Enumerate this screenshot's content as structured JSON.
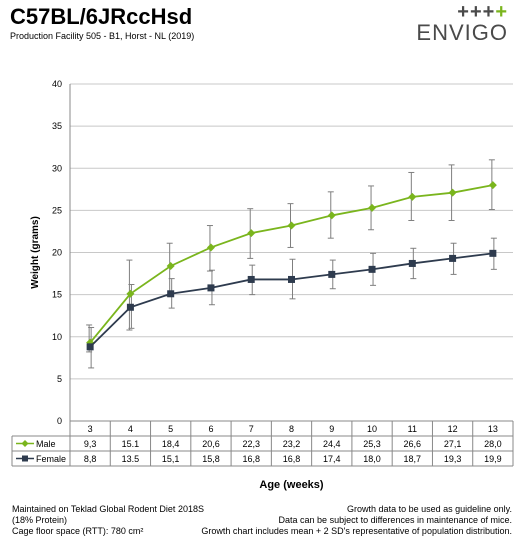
{
  "header": {
    "title": "C57BL/6JRccHsd",
    "subtitle": "Production Facility 505 - B1, Horst - NL (2019)"
  },
  "logo": {
    "plus": "+++",
    "accent_plus": "+",
    "text": "ENVIGO"
  },
  "chart_data": {
    "type": "line",
    "xlabel": "Age (weeks)",
    "ylabel": "Weight (grams)",
    "ylim": [
      0,
      40
    ],
    "yticks": [
      0,
      5,
      10,
      15,
      20,
      25,
      30,
      35,
      40
    ],
    "categories": [
      "3",
      "4",
      "5",
      "6",
      "7",
      "8",
      "9",
      "10",
      "11",
      "12",
      "13"
    ],
    "grid": true,
    "legend": "data-table-below",
    "series": [
      {
        "name": "Male",
        "color": "#7ab51d",
        "marker": "diamond",
        "values": [
          9.3,
          15.1,
          18.4,
          20.6,
          22.3,
          23.2,
          24.4,
          25.3,
          26.6,
          27.1,
          28.0
        ],
        "labels": [
          "9,3",
          "15.1",
          "18,4",
          "20,6",
          "22,3",
          "23,2",
          "24,4",
          "25,3",
          "26,6",
          "27,1",
          "28,0"
        ],
        "err_low": [
          8.2,
          10.8,
          14.8,
          17.8,
          19.3,
          20.6,
          21.7,
          22.7,
          23.8,
          23.8,
          25.1
        ],
        "err_high": [
          11.4,
          19.1,
          21.1,
          23.2,
          25.2,
          25.8,
          27.2,
          27.9,
          29.5,
          30.4,
          31.0
        ]
      },
      {
        "name": "Female",
        "color": "#2e3b4e",
        "marker": "square",
        "values": [
          8.8,
          13.5,
          15.1,
          15.8,
          16.8,
          16.8,
          17.4,
          18.0,
          18.7,
          19.3,
          19.9
        ],
        "labels": [
          "8,8",
          "13.5",
          "15,1",
          "15,8",
          "16,8",
          "16,8",
          "17,4",
          "18,0",
          "18,7",
          "19,3",
          "19,9"
        ],
        "err_low": [
          6.3,
          11.0,
          13.4,
          13.8,
          15.0,
          14.5,
          15.7,
          16.1,
          16.9,
          17.4,
          18.0
        ],
        "err_high": [
          11.1,
          16.2,
          16.9,
          17.9,
          18.5,
          19.2,
          19.1,
          19.9,
          20.5,
          21.1,
          21.7
        ]
      }
    ]
  },
  "footer": {
    "left": [
      "Maintained on Teklad Global Rodent Diet 2018S",
      "(18% Protein)",
      "Cage floor space (RTT): 780 cm²"
    ],
    "right": [
      "Growth data to be used as guideline only.",
      "Data can be subject to differences in maintenance of mice.",
      "Growth chart includes mean + 2 SD's representative of population distribution."
    ]
  }
}
